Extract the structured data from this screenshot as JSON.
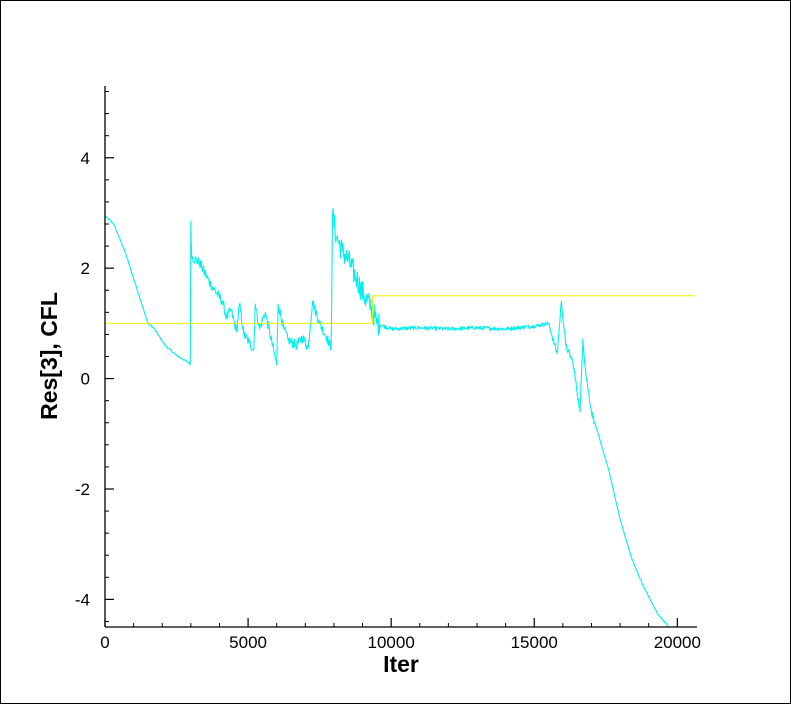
{
  "chart_data": {
    "type": "line",
    "title": "",
    "xlabel": "Iter",
    "ylabel": "Res[3], CFL",
    "xlim": [
      0,
      20600
    ],
    "ylim": [
      -4.5,
      5.3
    ],
    "grid": false,
    "x_major_ticks": [
      0,
      5000,
      10000,
      15000,
      20000
    ],
    "x_tick_labels": [
      "0",
      "5000",
      "10000",
      "15000",
      "20000"
    ],
    "x_minor_step": 1000,
    "y_major_ticks": [
      -4,
      -2,
      0,
      2,
      4
    ],
    "y_tick_labels": [
      "-4",
      "-2",
      "0",
      "2",
      "4"
    ],
    "y_minor_step": 0.4,
    "series": [
      {
        "name": "",
        "color": "#00f0f0",
        "style": "noisy",
        "points": [
          [
            0,
            2.95
          ],
          [
            300,
            2.8
          ],
          [
            700,
            2.3
          ],
          [
            1100,
            1.65
          ],
          [
            1500,
            1.0
          ],
          [
            1700,
            0.92
          ],
          [
            2100,
            0.6
          ],
          [
            2500,
            0.42
          ],
          [
            2980,
            0.27
          ],
          [
            3000,
            2.85
          ],
          [
            3030,
            2.2
          ],
          [
            3300,
            2.1
          ],
          [
            3700,
            1.7
          ],
          [
            4100,
            1.4
          ],
          [
            4250,
            1.1
          ],
          [
            4400,
            1.25
          ],
          [
            4600,
            0.85
          ],
          [
            4700,
            1.35
          ],
          [
            4850,
            0.8
          ],
          [
            5050,
            0.65
          ],
          [
            5200,
            0.52
          ],
          [
            5250,
            1.35
          ],
          [
            5400,
            0.9
          ],
          [
            5600,
            1.2
          ],
          [
            6000,
            0.25
          ],
          [
            6050,
            1.35
          ],
          [
            6250,
            0.9
          ],
          [
            6400,
            0.7
          ],
          [
            6700,
            0.6
          ],
          [
            6900,
            0.75
          ],
          [
            7100,
            0.55
          ],
          [
            7250,
            1.4
          ],
          [
            7500,
            1.0
          ],
          [
            7750,
            0.75
          ],
          [
            7900,
            0.55
          ],
          [
            7950,
            2.95
          ],
          [
            8100,
            2.55
          ],
          [
            8300,
            2.3
          ],
          [
            8500,
            2.15
          ],
          [
            8800,
            1.8
          ],
          [
            9050,
            1.5
          ],
          [
            9300,
            1.3
          ],
          [
            9500,
            1.0
          ],
          [
            10000,
            0.9
          ],
          [
            11000,
            0.92
          ],
          [
            12000,
            0.9
          ],
          [
            13000,
            0.92
          ],
          [
            14000,
            0.9
          ],
          [
            15000,
            0.95
          ],
          [
            15500,
            1.0
          ],
          [
            15800,
            0.45
          ],
          [
            15950,
            1.4
          ],
          [
            16100,
            0.6
          ],
          [
            16350,
            0.3
          ],
          [
            16600,
            -0.6
          ],
          [
            16700,
            0.72
          ],
          [
            16800,
            0.1
          ],
          [
            17000,
            -0.6
          ],
          [
            17200,
            -0.95
          ],
          [
            17600,
            -1.65
          ],
          [
            18000,
            -2.55
          ],
          [
            18400,
            -3.25
          ],
          [
            18800,
            -3.75
          ],
          [
            19300,
            -4.25
          ],
          [
            19700,
            -4.5
          ]
        ]
      },
      {
        "name": "",
        "color": "#f0f000",
        "style": "step",
        "points": [
          [
            0,
            1.0
          ],
          [
            9350,
            1.0
          ],
          [
            9350,
            1.5
          ],
          [
            20600,
            1.5
          ]
        ]
      }
    ]
  }
}
